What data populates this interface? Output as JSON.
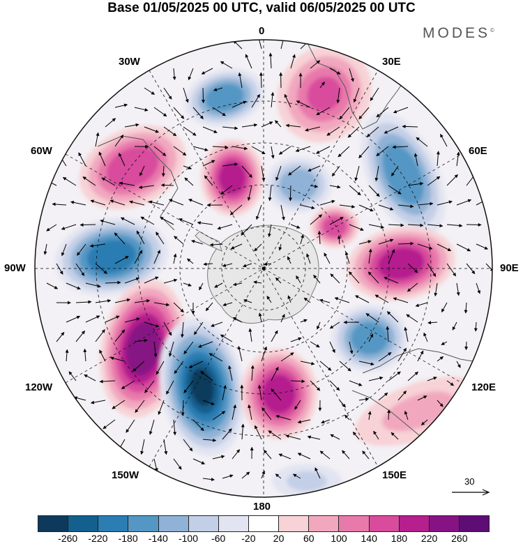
{
  "title": "Base 01/05/2025 00 UTC, valid 06/05/2025 00 UTC",
  "brand": "MODES",
  "brand_mark": "©",
  "longitude_labels": {
    "top": "0",
    "bottom": "180",
    "left": "90W",
    "right": "90E",
    "upper_left_30": "30W",
    "upper_right_30": "30E",
    "left_60": "60W",
    "right_60": "60E",
    "lower_left_120": "120W",
    "lower_right_120": "120E",
    "lower_left_150": "150W",
    "lower_right_150": "150E"
  },
  "reference_vector": {
    "label": "30"
  },
  "colorbar": {
    "ticks": [
      "-260",
      "-220",
      "-180",
      "-140",
      "-100",
      "-60",
      "-20",
      "20",
      "60",
      "100",
      "140",
      "180",
      "220",
      "260"
    ],
    "colors": [
      "#0d3a5c",
      "#135f8e",
      "#2b7db3",
      "#5497c4",
      "#8fb2d6",
      "#c3cfe6",
      "#e2e4f1",
      "#ffffff",
      "#f7d2d6",
      "#f1a8bf",
      "#e879ab",
      "#d84b9d",
      "#b51f8e",
      "#861384",
      "#5e0d74"
    ]
  },
  "anomaly_centers": [
    {
      "id": "low-southatlantic-n",
      "value": -160
    },
    {
      "id": "high-africa-n",
      "value": 140
    },
    {
      "id": "low-indian-west",
      "value": -170
    },
    {
      "id": "high-southamerica",
      "value": 160
    },
    {
      "id": "high-weddell",
      "value": 200
    },
    {
      "id": "low-weddell",
      "value": -120
    },
    {
      "id": "high-indian-1",
      "value": 160
    },
    {
      "id": "high-indian-2",
      "value": 190
    },
    {
      "id": "low-pacific-east",
      "value": -200
    },
    {
      "id": "high-pacific-1",
      "value": 250
    },
    {
      "id": "low-pacific-2",
      "value": -260
    },
    {
      "id": "high-rosssea",
      "value": 210
    },
    {
      "id": "low-australia",
      "value": -170
    },
    {
      "id": "high-australia",
      "value": 60
    },
    {
      "id": "low-small-lower",
      "value": -60
    }
  ]
}
